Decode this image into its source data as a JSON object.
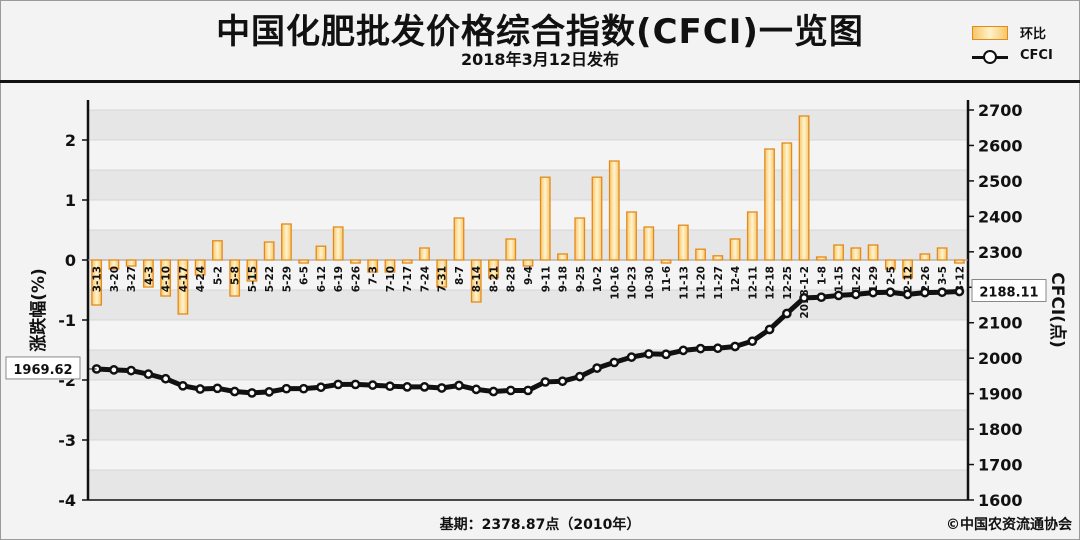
{
  "header": {
    "title": "中国化肥批发价格综合指数(CFCI)一览图",
    "subtitle": "2018年3月12日发布"
  },
  "legend": {
    "bar_label": "环比",
    "line_label": "CFCI"
  },
  "footer": {
    "base_text": "基期：2378.87点（2010年）",
    "copyright": "©中国农资流通协会"
  },
  "colors": {
    "bar_fill": "#f7c66a",
    "bar_edge": "#e38a1c",
    "line": "#111111",
    "grid_band": "#e6e6e6",
    "plot_bg": "#f4f4f4"
  },
  "chart_data": {
    "type": "bar",
    "categories": [
      "3-13",
      "3-20",
      "3-27",
      "4-3",
      "4-10",
      "4-17",
      "4-24",
      "5-2",
      "5-8",
      "5-15",
      "5-22",
      "5-29",
      "6-5",
      "6-12",
      "6-19",
      "6-26",
      "7-3",
      "7-10",
      "7-17",
      "7-24",
      "7-31",
      "8-7",
      "8-14",
      "8-21",
      "8-28",
      "9-4",
      "9-11",
      "9-18",
      "9-25",
      "10-2",
      "10-16",
      "10-23",
      "10-30",
      "11-6",
      "11-13",
      "11-20",
      "11-27",
      "12-4",
      "12-11",
      "12-18",
      "12-25",
      "2018-1-2",
      "1-8",
      "1-15",
      "1-22",
      "1-29",
      "2-5",
      "2-12",
      "2-26",
      "3-5",
      "3-12"
    ],
    "tick_labels": [
      "3-13",
      "3-20",
      "3-27",
      "4-3",
      "4-10",
      "4-17",
      "4-24",
      "5-2",
      "5-8",
      "5-15",
      "5-22",
      "5-29",
      "6-5",
      "6-12",
      "6-19",
      "6-26",
      "7-3",
      "7-10",
      "7-17",
      "7-24",
      "7-31",
      "8-7",
      "8-14",
      "8-21",
      "8-28",
      "9-4",
      "9-11",
      "9-18",
      "9-25",
      "10-2",
      "10-16",
      "10-23",
      "10-30",
      "11-6",
      "11-13",
      "11-20",
      "11-27",
      "12-4",
      "12-11",
      "12-18",
      "12-25",
      "2018-1-2",
      "1-8",
      "1-15",
      "1-22",
      "1-29",
      "2-5",
      "2-12",
      "2-26",
      "3-5",
      "3-12"
    ],
    "series": [
      {
        "name": "环比",
        "type": "bar",
        "axis": "left",
        "values": [
          -0.75,
          -0.15,
          -0.1,
          -0.45,
          -0.6,
          -0.9,
          -0.25,
          0.32,
          -0.6,
          -0.35,
          0.3,
          0.6,
          -0.05,
          0.23,
          0.55,
          -0.05,
          -0.2,
          -0.2,
          -0.05,
          0.2,
          -0.45,
          0.7,
          -0.7,
          -0.3,
          0.35,
          -0.1,
          1.38,
          0.1,
          0.7,
          1.38,
          1.65,
          0.8,
          0.55,
          -0.05,
          0.58,
          0.18,
          0.07,
          0.35,
          0.8,
          1.85,
          1.95,
          2.4,
          0.05,
          0.25,
          0.2,
          0.25,
          -0.15,
          -0.3,
          0.1,
          0.2,
          -0.05
        ]
      },
      {
        "name": "CFCI",
        "type": "line",
        "axis": "right",
        "values": [
          1969.62,
          1967,
          1965,
          1955,
          1942,
          1922,
          1913,
          1915,
          1906,
          1902,
          1905,
          1914,
          1914,
          1918,
          1926,
          1926,
          1924,
          1921,
          1919,
          1919,
          1916,
          1923,
          1912,
          1906,
          1909,
          1909,
          1933,
          1935,
          1948,
          1972,
          1988,
          2003,
          2012,
          2011,
          2022,
          2027,
          2028,
          2033,
          2048,
          2081,
          2126,
          2170,
          2172,
          2177,
          2180,
          2185,
          2186,
          2180,
          2185,
          2186,
          2188.11
        ]
      }
    ],
    "ylabel": "涨跌幅(%)",
    "y2label": "CFCI(点)",
    "ylim": [
      -4,
      2.5
    ],
    "y2lim": [
      1600,
      2700
    ],
    "y_ticks": [
      2,
      1,
      0,
      -1,
      -2,
      -3,
      -4
    ],
    "y2_ticks": [
      2700,
      2600,
      2500,
      2400,
      2300,
      2200,
      2100,
      2000,
      1900,
      1800,
      1700,
      1600
    ],
    "annotations": {
      "start_value": "1969.62",
      "end_value": "2188.11"
    },
    "grid": true
  }
}
